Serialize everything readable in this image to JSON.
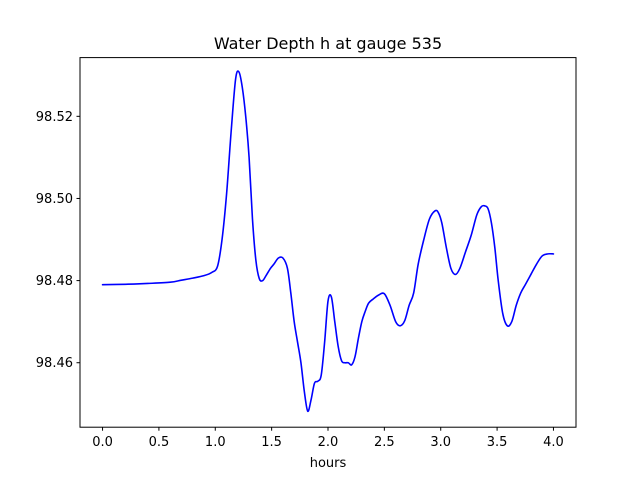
{
  "chart_data": {
    "type": "line",
    "title": "Water Depth h at gauge 535",
    "xlabel": "hours",
    "ylabel": "",
    "xlim": [
      -0.2,
      4.2
    ],
    "ylim": [
      98.4443,
      98.5343
    ],
    "x_ticks": [
      0.0,
      0.5,
      1.0,
      1.5,
      2.0,
      2.5,
      3.0,
      3.5,
      4.0
    ],
    "x_tick_labels": [
      "0.0",
      "0.5",
      "1.0",
      "1.5",
      "2.0",
      "2.5",
      "3.0",
      "3.5",
      "4.0"
    ],
    "y_ticks": [
      98.46,
      98.48,
      98.5,
      98.52
    ],
    "y_tick_labels": [
      "98.46",
      "98.48",
      "98.50",
      "98.52"
    ],
    "grid": false,
    "legend": "none",
    "series": [
      {
        "color": "#0000ff",
        "x": [
          0.0,
          0.2,
          0.4,
          0.6,
          0.7,
          0.8,
          0.9,
          0.97,
          1.02,
          1.06,
          1.1,
          1.14,
          1.18,
          1.21,
          1.24,
          1.27,
          1.3,
          1.33,
          1.36,
          1.39,
          1.42,
          1.45,
          1.49,
          1.52,
          1.56,
          1.6,
          1.64,
          1.67,
          1.7,
          1.73,
          1.76,
          1.79,
          1.82,
          1.85,
          1.88,
          1.91,
          1.94,
          1.97,
          2.0,
          2.03,
          2.06,
          2.09,
          2.12,
          2.15,
          2.18,
          2.21,
          2.24,
          2.27,
          2.3,
          2.33,
          2.36,
          2.4,
          2.45,
          2.5,
          2.55,
          2.6,
          2.64,
          2.68,
          2.72,
          2.76,
          2.8,
          2.85,
          2.9,
          2.95,
          2.98,
          3.01,
          3.05,
          3.09,
          3.13,
          3.17,
          3.22,
          3.27,
          3.32,
          3.36,
          3.39,
          3.42,
          3.45,
          3.48,
          3.51,
          3.55,
          3.59,
          3.63,
          3.67,
          3.71,
          3.75,
          3.8,
          3.85,
          3.9,
          3.95,
          4.0
        ],
        "values": [
          98.479,
          98.4791,
          98.4793,
          98.4796,
          98.4801,
          98.4806,
          98.4812,
          98.482,
          98.4835,
          98.49,
          98.501,
          98.516,
          98.529,
          98.5308,
          98.527,
          98.52,
          98.51,
          98.495,
          98.485,
          98.4805,
          98.48,
          98.4812,
          98.483,
          98.484,
          98.4855,
          98.4855,
          98.483,
          98.477,
          98.47,
          98.465,
          98.46,
          98.453,
          98.4482,
          98.451,
          98.455,
          98.4555,
          98.457,
          98.465,
          98.475,
          98.476,
          98.47,
          98.464,
          98.4605,
          98.46,
          98.46,
          98.4595,
          98.4615,
          98.466,
          98.47,
          98.4725,
          98.4745,
          98.4755,
          98.4765,
          98.4768,
          98.474,
          98.47,
          98.469,
          98.4702,
          98.474,
          98.477,
          98.484,
          98.49,
          98.495,
          98.497,
          98.4965,
          98.494,
          98.488,
          98.483,
          98.4815,
          98.483,
          98.487,
          98.491,
          98.496,
          98.498,
          98.4982,
          98.4975,
          98.494,
          98.488,
          98.48,
          98.472,
          98.469,
          98.47,
          98.474,
          98.477,
          98.479,
          98.4815,
          98.484,
          98.486,
          98.4865,
          98.4865
        ]
      }
    ]
  }
}
